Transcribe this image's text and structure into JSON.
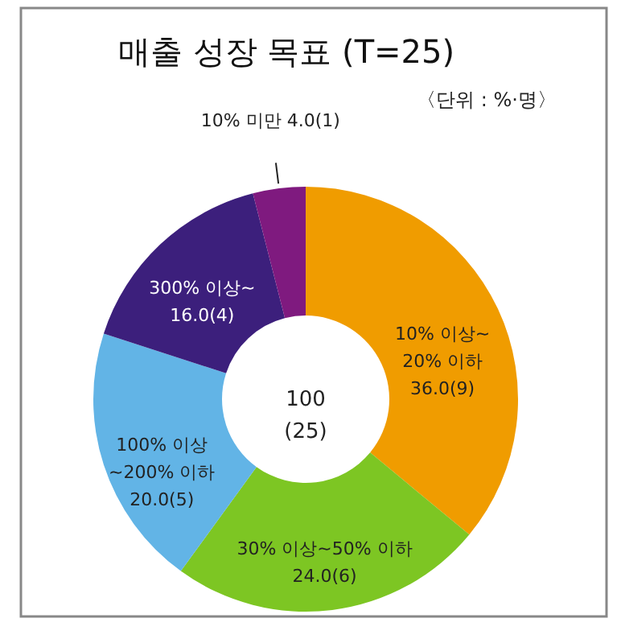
{
  "chart_data": {
    "type": "donut",
    "title": "매출 성장 목표 (T=25)",
    "categories": [
      "10% 이상~\n20% 이하",
      "30% 이상~50% 이하",
      "100% 이상\n~200% 이하",
      "300% 이상~",
      "10% 미만"
    ],
    "values": [
      36.0,
      24.0,
      20.0,
      16.0,
      4.0
    ],
    "value_labels": [
      "36.0(9)",
      "24.0(6)",
      "20.0(5)",
      "16.0(4)",
      "4.0(1)"
    ],
    "colors": [
      "#f09c00",
      "#7dc623",
      "#62b4e6",
      "#3c1f7c",
      "#7f1a7f"
    ],
    "annotations": [
      "〈단위 : %·명〉",
      "100\n(25)"
    ]
  }
}
